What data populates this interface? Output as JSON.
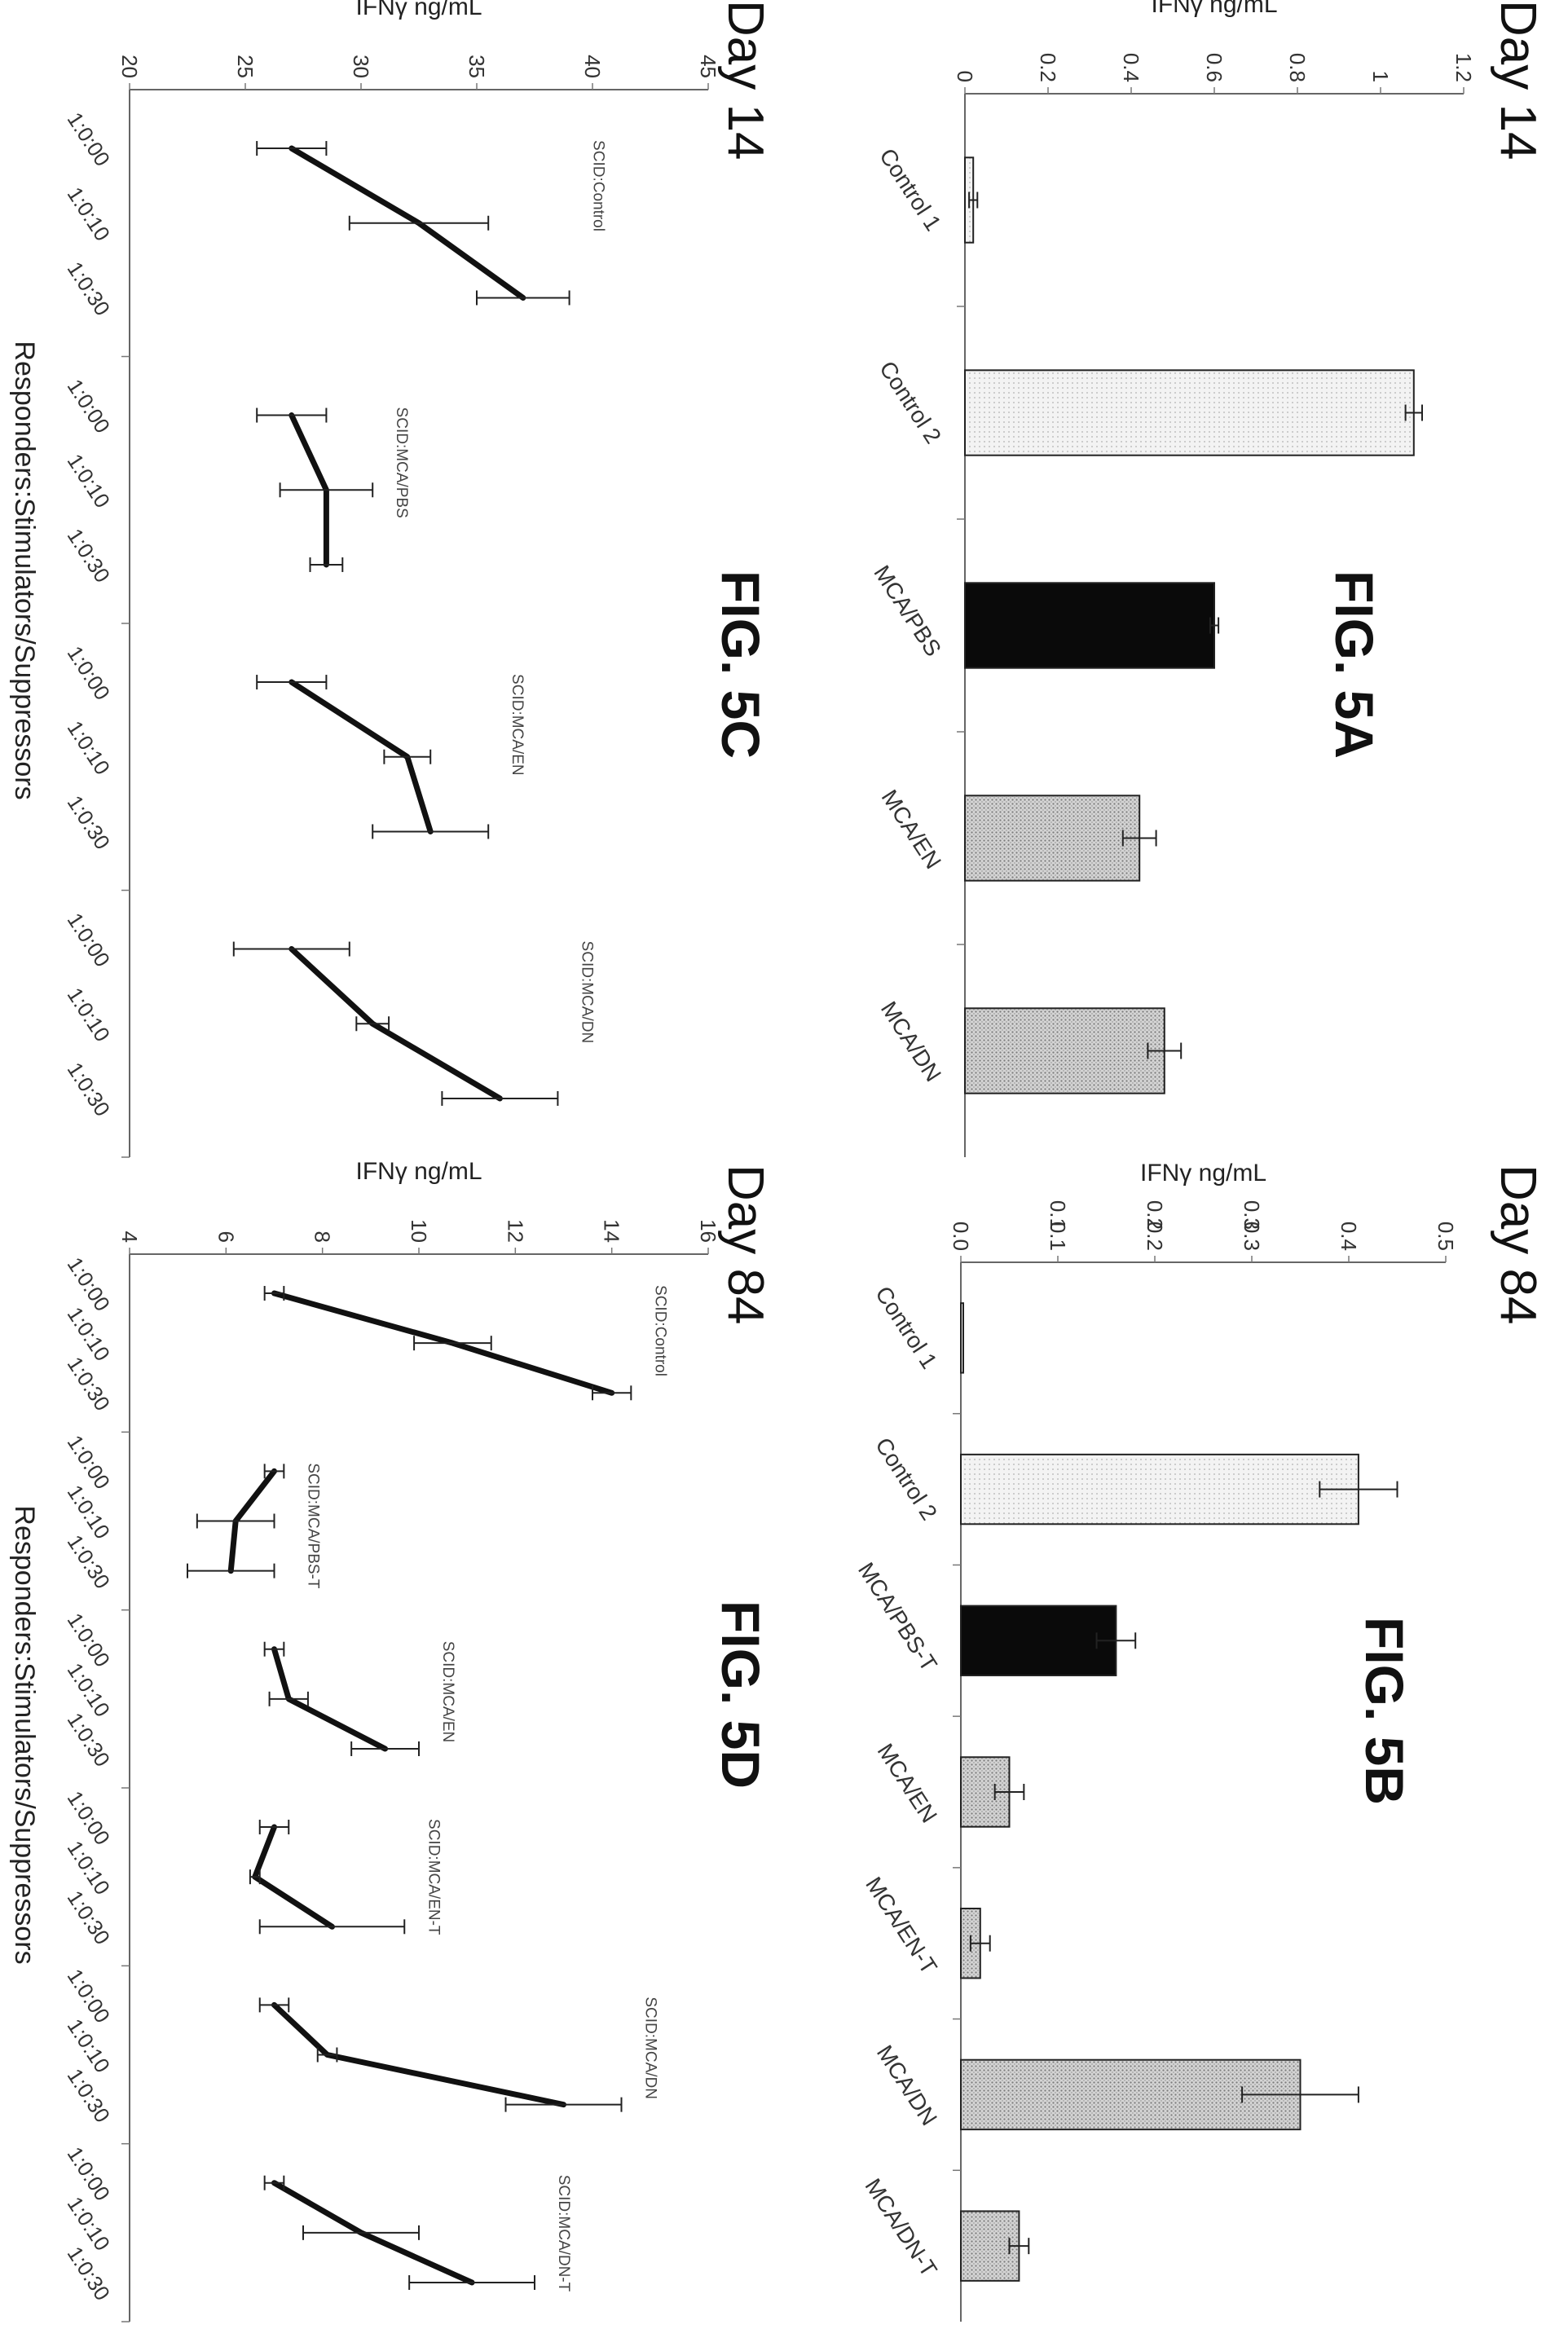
{
  "charts": [
    {
      "id": "A",
      "day_label": "Day 14",
      "fig_label": "FIG. 5A",
      "chart_data": {
        "type": "bar",
        "ylabel": "IFNγ ng/mL",
        "ylim": [
          0,
          1.2
        ],
        "yticks": [
          0,
          0.2,
          0.4,
          0.6,
          0.8,
          1,
          1.2
        ],
        "ytick_labels": [
          "0",
          "0.2",
          "0.4",
          "0.6",
          "0.8",
          "1",
          "1.2"
        ],
        "categories": [
          "Control 1",
          "Control 2",
          "MCA/PBS",
          "MCA/EN",
          "MCA/DN"
        ],
        "values": [
          0.02,
          1.08,
          0.6,
          0.42,
          0.48
        ],
        "errors": [
          0.01,
          0.02,
          0.01,
          0.04,
          0.04
        ],
        "fills": [
          "light",
          "light",
          "dark",
          "medium",
          "medium"
        ],
        "grid": false
      }
    },
    {
      "id": "B",
      "day_label": "Day 84",
      "fig_label": "FIG. 5B",
      "chart_data": {
        "type": "bar",
        "ylabel": "IFNγ ng/mL",
        "ylim": [
          0,
          0.5
        ],
        "yticks": [
          0,
          0.1,
          0.2,
          0.3,
          0.4,
          0.5
        ],
        "ytick_labels": [
          "0.0",
          "0.1",
          "0.2",
          "0.3",
          "0.4",
          "0.5"
        ],
        "ytick_side_labels": [
          "0.1",
          "0.2",
          "0.3"
        ],
        "categories": [
          "Control 1",
          "Control 2",
          "MCA/PBS-T",
          "MCA/EN",
          "MCA/EN-T",
          "MCA/DN",
          "MCA/DN-T"
        ],
        "values": [
          0.0,
          0.41,
          0.16,
          0.05,
          0.02,
          0.35,
          0.06
        ],
        "errors": [
          0.0,
          0.04,
          0.02,
          0.015,
          0.01,
          0.06,
          0.01
        ],
        "fills": [
          "light",
          "light",
          "dark",
          "medium",
          "medium",
          "medium",
          "medium"
        ],
        "grid": false
      }
    },
    {
      "id": "C",
      "day_label": "Day 14",
      "fig_label": "FIG. 5C",
      "chart_data": {
        "type": "line",
        "ylabel": "IFNγ ng/mL",
        "xlabel": "Responders:Stimulators/Suppressors",
        "ylim": [
          20,
          45
        ],
        "yticks": [
          20,
          25,
          30,
          35,
          40,
          45
        ],
        "ytick_labels": [
          "20",
          "25",
          "30",
          "35",
          "40",
          "45"
        ],
        "x_labels": [
          "1:0:00",
          "1:0:10",
          "1:0:30"
        ],
        "groups": [
          {
            "name": "SCID:Control",
            "values": [
              27,
              32.5,
              37
            ],
            "errors": [
              1.5,
              3,
              2
            ]
          },
          {
            "name": "SCID:MCA/PBS",
            "values": [
              27,
              28.5,
              28.5
            ],
            "errors": [
              1.5,
              2,
              0.7
            ]
          },
          {
            "name": "SCID:MCA/EN",
            "values": [
              27,
              32,
              33
            ],
            "errors": [
              1.5,
              1,
              2.5
            ]
          },
          {
            "name": "SCID:MCA/DN",
            "values": [
              27,
              30.5,
              36
            ],
            "errors": [
              2.5,
              0.7,
              2.5
            ]
          }
        ],
        "grid": false
      }
    },
    {
      "id": "D",
      "day_label": "Day 84",
      "fig_label": "FIG. 5D",
      "chart_data": {
        "type": "line",
        "ylabel": "IFNγ ng/mL",
        "xlabel": "Responders:Stimulators/Suppressors",
        "ylim": [
          4,
          16
        ],
        "yticks": [
          4,
          6,
          8,
          10,
          12,
          14,
          16
        ],
        "ytick_labels": [
          "4",
          "6",
          "8",
          "10",
          "12",
          "14",
          "16"
        ],
        "x_labels": [
          "1:0:00",
          "1:0:10",
          "1:0:30"
        ],
        "groups": [
          {
            "name": "SCID:Control",
            "values": [
              7,
              10.7,
              14
            ],
            "errors": [
              0.2,
              0.8,
              0.4
            ]
          },
          {
            "name": "SCID:MCA/PBS-T",
            "values": [
              7,
              6.2,
              6.1
            ],
            "errors": [
              0.2,
              0.8,
              0.9
            ]
          },
          {
            "name": "SCID:MCA/EN",
            "values": [
              7,
              7.3,
              9.3
            ],
            "errors": [
              0.2,
              0.4,
              0.7
            ]
          },
          {
            "name": "SCID:MCA/EN-T",
            "values": [
              7,
              6.6,
              8.2
            ],
            "errors": [
              0.3,
              0.1,
              1.5
            ]
          },
          {
            "name": "SCID:MCA/DN",
            "values": [
              7,
              8.1,
              13
            ],
            "errors": [
              0.3,
              0.2,
              1.2
            ]
          },
          {
            "name": "SCID:MCA/DN-T",
            "values": [
              7,
              8.8,
              11.1
            ],
            "errors": [
              0.2,
              1.2,
              1.3
            ]
          }
        ],
        "grid": false
      }
    }
  ]
}
